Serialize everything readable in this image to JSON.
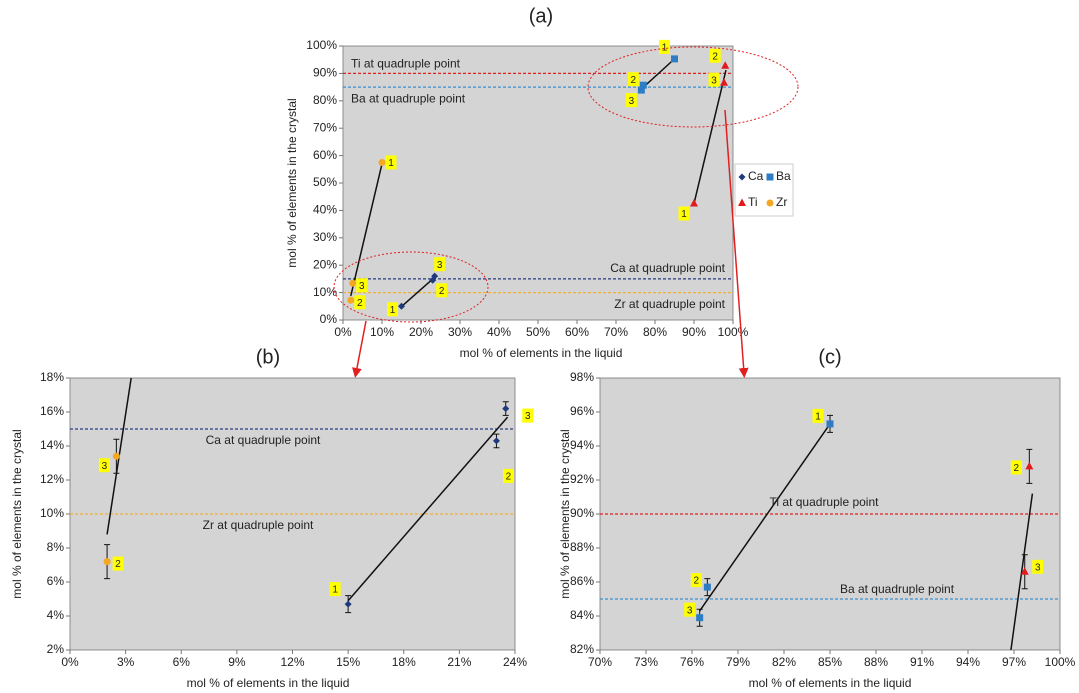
{
  "chart_data": [
    {
      "type": "scatter",
      "title": "(a)",
      "x_label": "mol % of elements in the liquid",
      "y_label": "mol % of elements in the crystal",
      "xlim": [
        0,
        100
      ],
      "ylim": [
        0,
        100
      ],
      "xticks": [
        {
          "value": 0,
          "label": "0%"
        },
        {
          "value": 10,
          "label": "10%"
        },
        {
          "value": 20,
          "label": "20%"
        },
        {
          "value": 30,
          "label": "30%"
        },
        {
          "value": 40,
          "label": "40%"
        },
        {
          "value": 50,
          "label": "50%"
        },
        {
          "value": 60,
          "label": "60%"
        },
        {
          "value": 70,
          "label": "70%"
        },
        {
          "value": 80,
          "label": "80%"
        },
        {
          "value": 90,
          "label": "90%"
        },
        {
          "value": 100,
          "label": "100%"
        }
      ],
      "yticks": [
        {
          "value": 0,
          "label": "0%"
        },
        {
          "value": 10,
          "label": "10%"
        },
        {
          "value": 20,
          "label": "20%"
        },
        {
          "value": 30,
          "label": "30%"
        },
        {
          "value": 40,
          "label": "40%"
        },
        {
          "value": 50,
          "label": "50%"
        },
        {
          "value": 60,
          "label": "60%"
        },
        {
          "value": 70,
          "label": "70%"
        },
        {
          "value": 80,
          "label": "80%"
        },
        {
          "value": 90,
          "label": "90%"
        },
        {
          "value": 100,
          "label": "100%"
        }
      ],
      "legend": "right",
      "series": [
        {
          "name": "Ca",
          "color": "#1f3a7a",
          "marker": "diamond",
          "x": [
            15,
            23,
            23.5
          ],
          "values": [
            5,
            14.5,
            16
          ],
          "point_labels": [
            "1",
            "2",
            "3"
          ]
        },
        {
          "name": "Ba",
          "color": "#2e7dc4",
          "marker": "square",
          "x": [
            85,
            77,
            76.5
          ],
          "values": [
            95.3,
            85.7,
            83.9
          ],
          "point_labels": [
            "1",
            "2",
            "3"
          ]
        },
        {
          "name": "Ti",
          "color": "#e31a1c",
          "marker": "triangle",
          "x": [
            90,
            98,
            97.7
          ],
          "values": [
            42.5,
            92.8,
            86.6
          ],
          "point_labels": [
            "1",
            "2",
            "3"
          ]
        },
        {
          "name": "Zr",
          "color": "#f5a623",
          "marker": "circle",
          "x": [
            10,
            2,
            2.5
          ],
          "values": [
            57.5,
            7.2,
            13.4
          ],
          "point_labels": [
            "1",
            "2",
            "3"
          ]
        }
      ],
      "trend_lines": [
        {
          "x": [
            15,
            23.6
          ],
          "y": [
            4.9,
            15.7
          ]
        },
        {
          "x": [
            2,
            10
          ],
          "y": [
            8.8,
            57
          ]
        },
        {
          "x": [
            76.5,
            85
          ],
          "y": [
            84.3,
            95.3
          ]
        },
        {
          "x": [
            90,
            98.2
          ],
          "y": [
            42.5,
            91.2
          ]
        }
      ],
      "reference_lines": [
        {
          "label": "Ti at quadruple point",
          "value": 90,
          "color": "#e02020"
        },
        {
          "label": "Ba at quadruple point",
          "value": 85,
          "color": "#3a8fd0"
        },
        {
          "label": "Ca at quadruple point",
          "value": 15,
          "color": "#2a3a80"
        },
        {
          "label": "Zr at quadruple point",
          "value": 10,
          "color": "#f0b030"
        }
      ]
    },
    {
      "type": "scatter",
      "title": "(b)",
      "x_label": "mol % of elements in the liquid",
      "y_label": "mol % of elements in the crystal",
      "xlim": [
        0,
        24
      ],
      "ylim": [
        2,
        18
      ],
      "xticks": [
        {
          "value": 0,
          "label": "0%"
        },
        {
          "value": 3,
          "label": "3%"
        },
        {
          "value": 6,
          "label": "6%"
        },
        {
          "value": 9,
          "label": "9%"
        },
        {
          "value": 12,
          "label": "12%"
        },
        {
          "value": 15,
          "label": "15%"
        },
        {
          "value": 18,
          "label": "18%"
        },
        {
          "value": 21,
          "label": "21%"
        },
        {
          "value": 24,
          "label": "24%"
        }
      ],
      "yticks": [
        {
          "value": 2,
          "label": "2%"
        },
        {
          "value": 4,
          "label": "4%"
        },
        {
          "value": 6,
          "label": "6%"
        },
        {
          "value": 8,
          "label": "8%"
        },
        {
          "value": 10,
          "label": "10%"
        },
        {
          "value": 12,
          "label": "12%"
        },
        {
          "value": 14,
          "label": "14%"
        },
        {
          "value": 16,
          "label": "16%"
        },
        {
          "value": 18,
          "label": "18%"
        }
      ],
      "series": [
        {
          "color": "#1f3a7a",
          "marker": "diamond",
          "x": [
            15,
            23,
            23.5
          ],
          "values": [
            4.7,
            14.3,
            16.2
          ],
          "errors": [
            0.5,
            0.4,
            0.4
          ],
          "point_labels": [
            "1",
            "2",
            "3"
          ]
        },
        {
          "color": "#f5a623",
          "marker": "circle",
          "x": [
            2,
            2.5
          ],
          "values": [
            7.2,
            13.4
          ],
          "errors": [
            1,
            1
          ],
          "point_labels": [
            "2",
            "3"
          ]
        }
      ],
      "trend_lines": [
        {
          "x": [
            15,
            23.6
          ],
          "y": [
            4.9,
            15.7
          ]
        },
        {
          "x": [
            2,
            3.3
          ],
          "y": [
            8.8,
            18
          ]
        }
      ],
      "reference_lines": [
        {
          "label": "Ca at quadruple point",
          "value": 15,
          "color": "#2a3a80"
        },
        {
          "label": "Zr at quadruple point",
          "value": 10,
          "color": "#f0b030"
        }
      ]
    },
    {
      "type": "scatter",
      "title": "(c)",
      "x_label": "mol % of elements in the liquid",
      "y_label": "mol % of elements in the crystal",
      "xlim": [
        70,
        100
      ],
      "ylim": [
        82,
        98
      ],
      "xticks": [
        {
          "value": 70,
          "label": "70%"
        },
        {
          "value": 73,
          "label": "73%"
        },
        {
          "value": 76,
          "label": "76%"
        },
        {
          "value": 79,
          "label": "79%"
        },
        {
          "value": 82,
          "label": "82%"
        },
        {
          "value": 85,
          "label": "85%"
        },
        {
          "value": 88,
          "label": "88%"
        },
        {
          "value": 91,
          "label": "91%"
        },
        {
          "value": 94,
          "label": "94%"
        },
        {
          "value": 97,
          "label": "97%"
        },
        {
          "value": 100,
          "label": "100%"
        }
      ],
      "yticks": [
        {
          "value": 82,
          "label": "82%"
        },
        {
          "value": 84,
          "label": "84%"
        },
        {
          "value": 86,
          "label": "86%"
        },
        {
          "value": 88,
          "label": "88%"
        },
        {
          "value": 90,
          "label": "90%"
        },
        {
          "value": 92,
          "label": "92%"
        },
        {
          "value": 94,
          "label": "94%"
        },
        {
          "value": 96,
          "label": "96%"
        },
        {
          "value": 98,
          "label": "98%"
        }
      ],
      "series": [
        {
          "color": "#2e7dc4",
          "marker": "square",
          "x": [
            85,
            77,
            76.5
          ],
          "values": [
            95.3,
            85.7,
            83.9
          ],
          "errors": [
            0.5,
            0.5,
            0.5
          ],
          "point_labels": [
            "1",
            "2",
            "3"
          ]
        },
        {
          "color": "#e31a1c",
          "marker": "triangle",
          "x": [
            98,
            97.7
          ],
          "values": [
            92.8,
            86.6
          ],
          "errors": [
            1,
            1
          ],
          "point_labels": [
            "2",
            "3"
          ]
        }
      ],
      "trend_lines": [
        {
          "x": [
            76.5,
            85
          ],
          "y": [
            84.3,
            95.3
          ]
        },
        {
          "x": [
            96.8,
            98.2
          ],
          "y": [
            82,
            91.2
          ]
        }
      ],
      "reference_lines": [
        {
          "label": "Ti at quadruple point",
          "value": 90,
          "color": "#e02020"
        },
        {
          "label": "Ba at quadruple point",
          "value": 85,
          "color": "#3a8fd0"
        }
      ]
    }
  ]
}
